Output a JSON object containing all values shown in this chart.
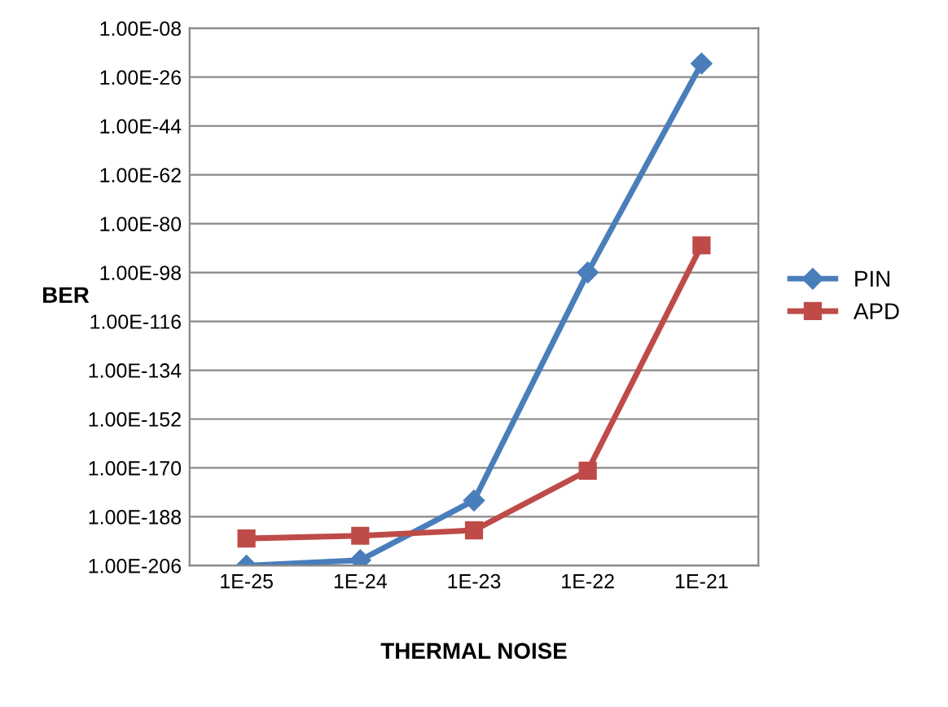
{
  "chart_data": {
    "type": "line",
    "xlabel": "THERMAL NOISE",
    "ylabel": "BER",
    "categories": [
      "1E-25",
      "1E-24",
      "1E-23",
      "1E-22",
      "1E-21"
    ],
    "series": [
      {
        "name": "PIN",
        "color": "#4a7ebb",
        "marker": "diamond",
        "values": [
          1e-206,
          1e-204,
          1e-182,
          1e-98,
          1e-21
        ]
      },
      {
        "name": "APD",
        "color": "#be4b48",
        "marker": "square",
        "values": [
          1e-196,
          1e-195,
          1e-193,
          1e-171,
          1e-88
        ]
      }
    ],
    "log": "y",
    "ylim": [
      1e-206,
      1e-08
    ],
    "yticks": [
      {
        "value": 1e-206,
        "label": "1.00E-206"
      },
      {
        "value": 1e-188,
        "label": "1.00E-188"
      },
      {
        "value": 1e-170,
        "label": "1.00E-170"
      },
      {
        "value": 1e-152,
        "label": "1.00E-152"
      },
      {
        "value": 1e-134,
        "label": "1.00E-134"
      },
      {
        "value": 1e-116,
        "label": "1.00E-116"
      },
      {
        "value": 1e-98,
        "label": "1.00E-98"
      },
      {
        "value": 1e-80,
        "label": "1.00E-80"
      },
      {
        "value": 1e-62,
        "label": "1.00E-62"
      },
      {
        "value": 1e-44,
        "label": "1.00E-44"
      },
      {
        "value": 1e-26,
        "label": "1.00E-26"
      },
      {
        "value": 1e-08,
        "label": "1.00E-08"
      }
    ],
    "grid": "y",
    "legend": "right",
    "line_style": "solid"
  }
}
